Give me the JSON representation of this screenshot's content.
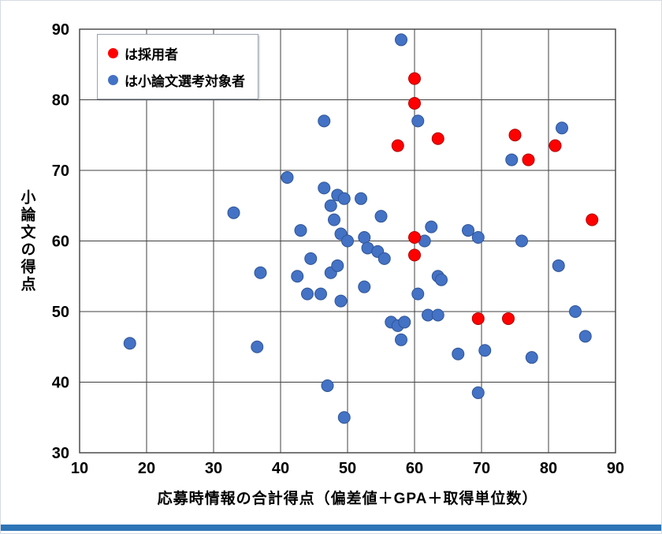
{
  "page": {
    "bottom_bar_color": "#2E75B6"
  },
  "legend": {
    "items": [
      {
        "label": "は採用者",
        "color": "#FF0000"
      },
      {
        "label": "は小論文選考対象者",
        "color": "#4472C4"
      }
    ]
  },
  "chart_data": {
    "type": "scatter",
    "title": "",
    "xlabel": "応募時情報の合計得点（偏差値＋GPA＋取得単位数）",
    "ylabel": "小論文の得点",
    "xlim": [
      10,
      90
    ],
    "ylim": [
      30,
      90
    ],
    "xticks": [
      10,
      20,
      30,
      40,
      50,
      60,
      70,
      80,
      90
    ],
    "yticks": [
      30,
      40,
      50,
      60,
      70,
      80,
      90
    ],
    "grid": true,
    "legend_position": "top-left-inside",
    "grid_color": "#404040",
    "marker_radius": 7.5,
    "series": [
      {
        "name": "採用者",
        "color": "#FF0000",
        "stroke": "#B00000",
        "points": [
          [
            57.5,
            73.5
          ],
          [
            60,
            83
          ],
          [
            60,
            79.5
          ],
          [
            63.5,
            74.5
          ],
          [
            75,
            75
          ],
          [
            77,
            71.5
          ],
          [
            81,
            73.5
          ],
          [
            86.5,
            63
          ],
          [
            60,
            60.5
          ],
          [
            60,
            58
          ],
          [
            69.5,
            49
          ],
          [
            74,
            49
          ]
        ]
      },
      {
        "name": "小論文選考対象者",
        "color": "#4472C4",
        "stroke": "#2F5597",
        "points": [
          [
            17.5,
            45.5
          ],
          [
            33,
            64
          ],
          [
            37,
            55.5
          ],
          [
            36.5,
            45
          ],
          [
            41,
            69
          ],
          [
            43,
            61.5
          ],
          [
            42.5,
            55
          ],
          [
            44.5,
            57.5
          ],
          [
            44,
            52.5
          ],
          [
            46.5,
            77
          ],
          [
            46.5,
            67.5
          ],
          [
            47.5,
            65
          ],
          [
            48.5,
            66.5
          ],
          [
            49.5,
            66
          ],
          [
            48,
            63
          ],
          [
            49,
            61
          ],
          [
            50,
            60
          ],
          [
            46,
            52.5
          ],
          [
            47.5,
            55.5
          ],
          [
            48.5,
            56.5
          ],
          [
            49,
            51.5
          ],
          [
            47,
            39.5
          ],
          [
            49.5,
            35
          ],
          [
            52,
            66
          ],
          [
            52.5,
            60.5
          ],
          [
            53,
            59
          ],
          [
            52.5,
            53.5
          ],
          [
            55,
            63.5
          ],
          [
            54.5,
            58.5
          ],
          [
            55.5,
            57.5
          ],
          [
            56.5,
            48.5
          ],
          [
            57.5,
            48
          ],
          [
            58,
            46
          ],
          [
            58.5,
            48.5
          ],
          [
            58,
            88.5
          ],
          [
            60.5,
            77
          ],
          [
            60.5,
            52.5
          ],
          [
            61.5,
            60
          ],
          [
            62.5,
            62
          ],
          [
            62,
            49.5
          ],
          [
            63.5,
            49.5
          ],
          [
            63.5,
            55
          ],
          [
            64,
            54.5
          ],
          [
            66.5,
            44
          ],
          [
            68,
            61.5
          ],
          [
            69.5,
            60.5
          ],
          [
            69.5,
            38.5
          ],
          [
            70.5,
            44.5
          ],
          [
            74.5,
            71.5
          ],
          [
            76,
            60
          ],
          [
            77.5,
            43.5
          ],
          [
            82,
            76
          ],
          [
            81.5,
            56.5
          ],
          [
            84,
            50
          ],
          [
            85.5,
            46.5
          ]
        ]
      }
    ]
  }
}
